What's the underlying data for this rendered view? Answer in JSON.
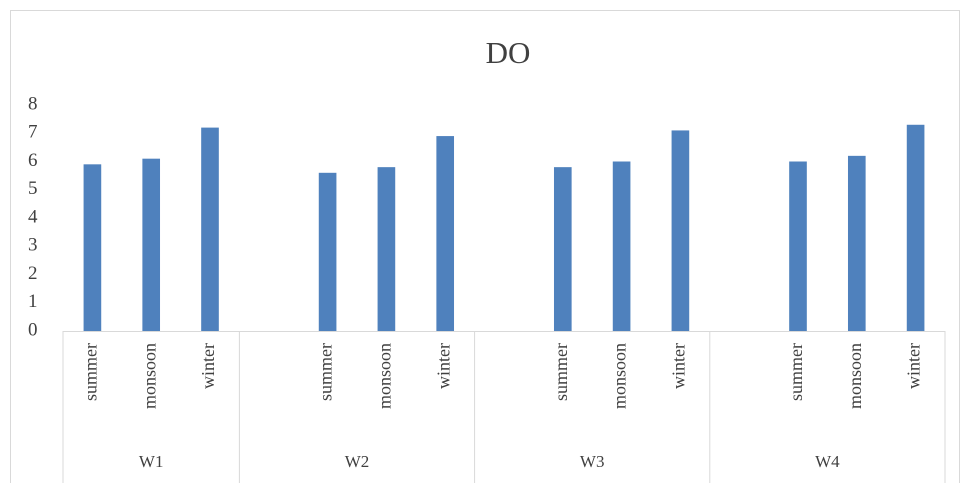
{
  "chart_data": {
    "type": "bar",
    "title": "DO",
    "categories": [
      "summer",
      "monsoon",
      "winter",
      null,
      "summer",
      "monsoon",
      "winter",
      null,
      "summer",
      "monsoon",
      "winter",
      null,
      "summer",
      "monsoon",
      "winter"
    ],
    "category_groups": [
      "W1",
      "W2",
      "W3",
      "W4"
    ],
    "values": [
      5.9,
      6.1,
      7.2,
      null,
      5.6,
      5.8,
      6.9,
      null,
      5.8,
      6.0,
      7.1,
      null,
      6.0,
      6.2,
      7.3
    ],
    "color": "#4f81bd",
    "ylim": [
      0,
      8
    ],
    "yticks": [
      0,
      1,
      2,
      3,
      4,
      5,
      6,
      7,
      8
    ],
    "grid": false
  }
}
